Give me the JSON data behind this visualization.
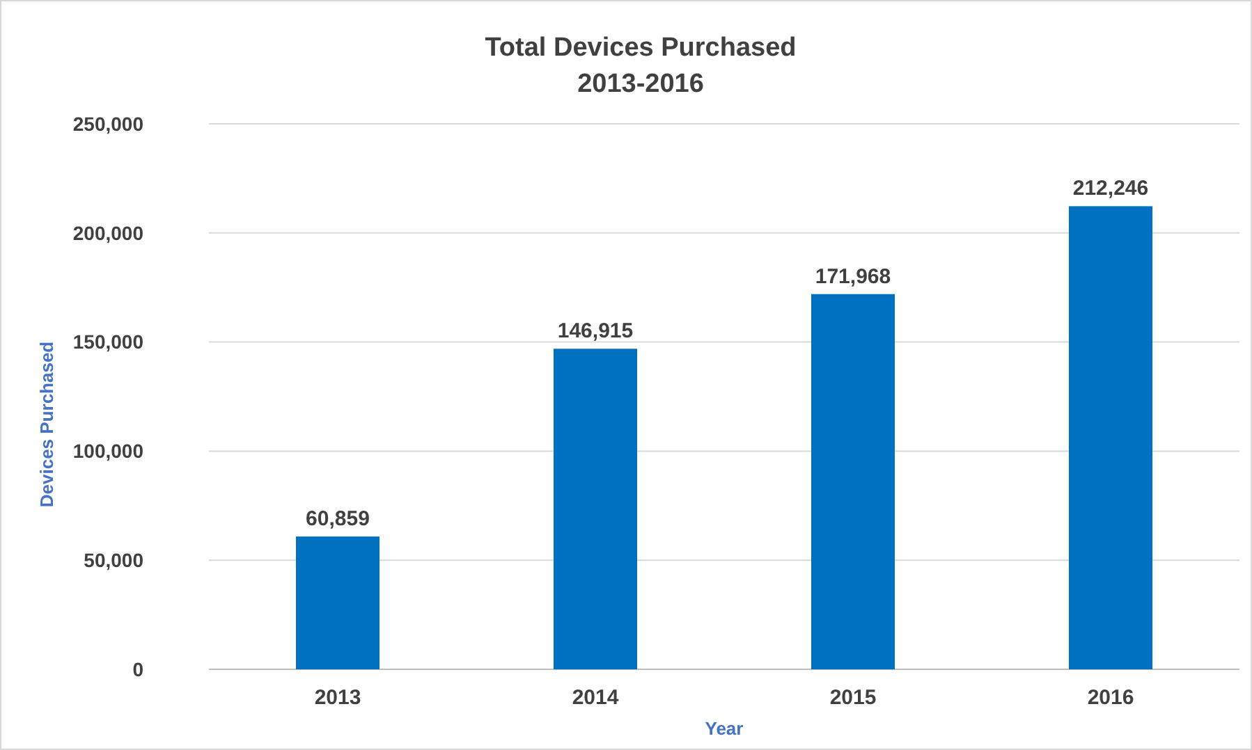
{
  "chart_data": {
    "type": "bar",
    "title": "Total Devices Purchased",
    "subtitle": "2013-2016",
    "xlabel": "Year",
    "ylabel": "Devices Purchased",
    "categories": [
      "2013",
      "2014",
      "2015",
      "2016"
    ],
    "values": [
      60859,
      146915,
      171968,
      212246
    ],
    "value_labels": [
      "60,859",
      "146,915",
      "171,968",
      "212,246"
    ],
    "color": "#0070c0",
    "ylim": [
      0,
      250000
    ],
    "yticks": [
      {
        "value": 0,
        "label": "0"
      },
      {
        "value": 50000,
        "label": "50,000"
      },
      {
        "value": 100000,
        "label": "100,000"
      },
      {
        "value": 150000,
        "label": "150,000"
      },
      {
        "value": 200000,
        "label": "200,000"
      },
      {
        "value": 250000,
        "label": "250,000"
      }
    ],
    "grid": "y"
  }
}
